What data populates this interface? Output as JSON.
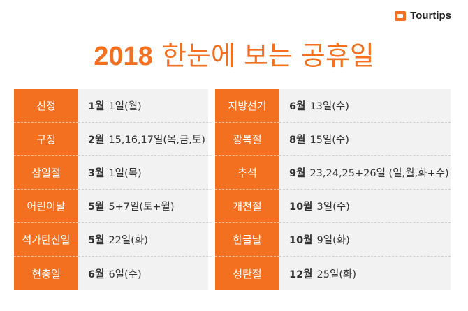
{
  "brand": {
    "name": "Tourtips"
  },
  "title": {
    "year": "2018",
    "text": "한눈에 보는 공휴일"
  },
  "left": [
    {
      "name": "신정",
      "month": "1월",
      "day": "1일(월)"
    },
    {
      "name": "구정",
      "month": "2월",
      "day": "15,16,17일(목,금,토)"
    },
    {
      "name": "삼일절",
      "month": "3월",
      "day": "1일(목)"
    },
    {
      "name": "어린이날",
      "month": "5월",
      "day": "5+7일(토+월)"
    },
    {
      "name": "석가탄신일",
      "month": "5월",
      "day": "22일(화)"
    },
    {
      "name": "현충일",
      "month": "6월",
      "day": "6일(수)"
    }
  ],
  "right": [
    {
      "name": "지방선거",
      "month": "6월",
      "day": "13일(수)"
    },
    {
      "name": "광복절",
      "month": "8월",
      "day": "15일(수)"
    },
    {
      "name": "추석",
      "month": "9월",
      "day": "23,24,25+26일 (일,월,화+수)"
    },
    {
      "name": "개천절",
      "month": "10월",
      "day": "3일(수)"
    },
    {
      "name": "한글날",
      "month": "10월",
      "day": "9일(화)"
    },
    {
      "name": "성탄절",
      "month": "12월",
      "day": "25일(화)"
    }
  ]
}
